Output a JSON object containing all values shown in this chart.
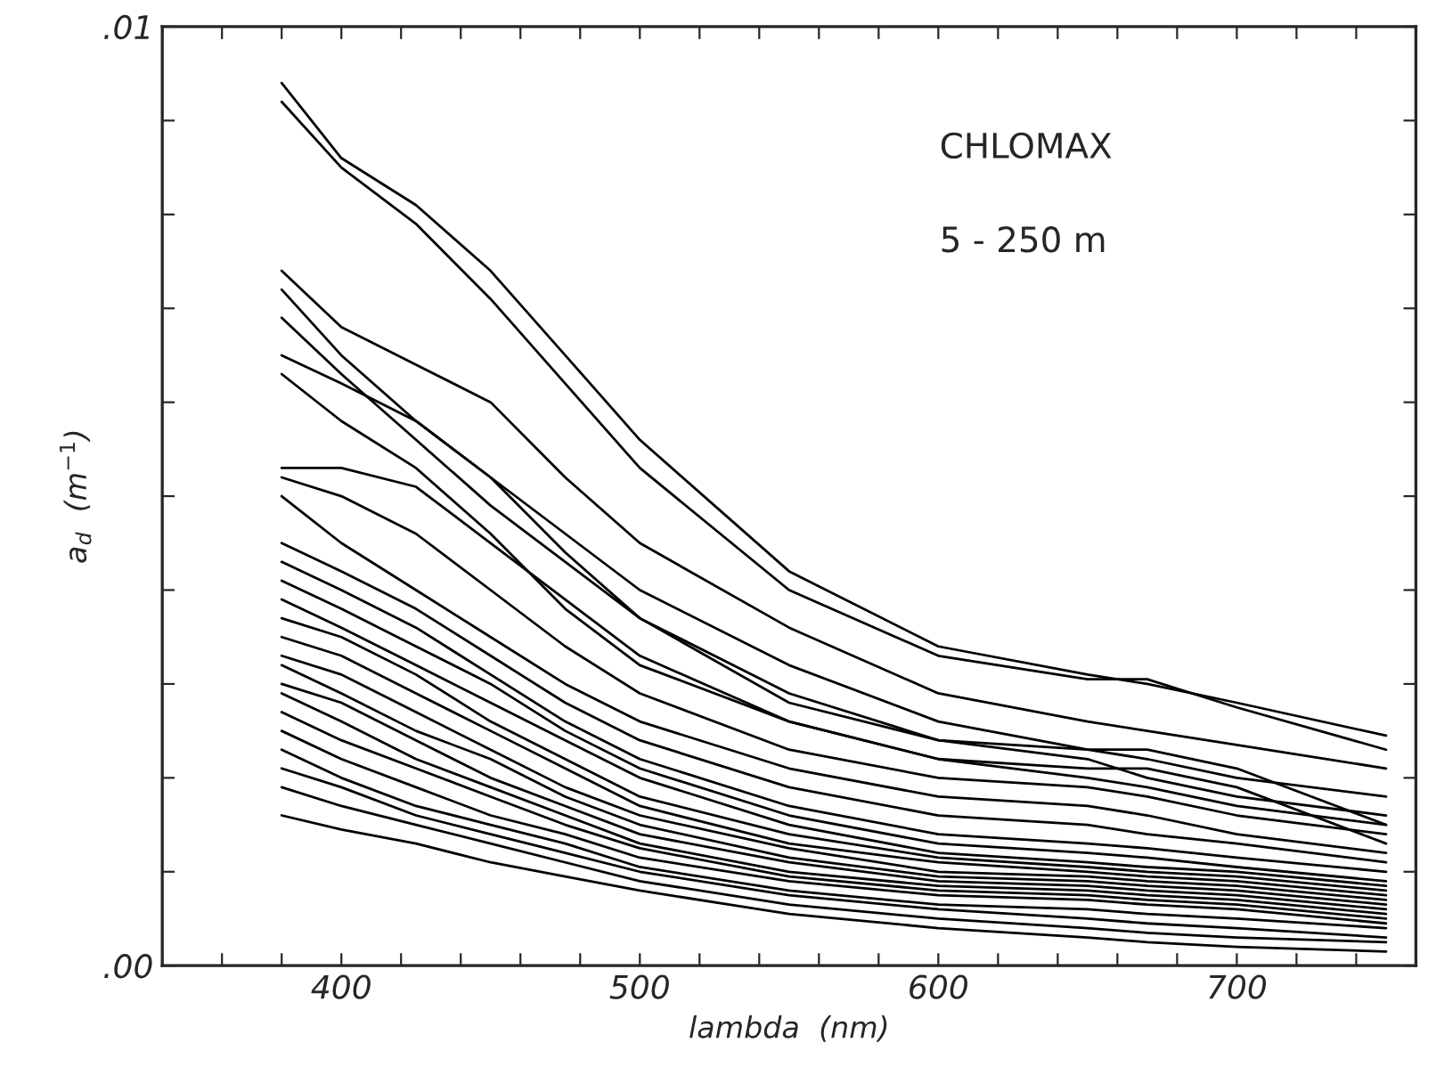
{
  "chart_data": {
    "type": "line",
    "xlabel": "lambda  (nm)",
    "ylabel": "a$_{d}$  (m$^{−1}$)",
    "annotations": [
      "CHLOMAX",
      "5 - 250 m"
    ],
    "x": [
      380,
      400,
      425,
      450,
      475,
      500,
      550,
      600,
      650,
      670,
      700,
      750
    ],
    "xlim": [
      340,
      760
    ],
    "xticks": [
      {
        "value": 340,
        "label": null
      },
      {
        "value": 360,
        "label": null
      },
      {
        "value": 380,
        "label": null
      },
      {
        "value": 400,
        "label": "400"
      },
      {
        "value": 420,
        "label": null
      },
      {
        "value": 440,
        "label": null
      },
      {
        "value": 460,
        "label": null
      },
      {
        "value": 480,
        "label": null
      },
      {
        "value": 500,
        "label": "500"
      },
      {
        "value": 520,
        "label": null
      },
      {
        "value": 540,
        "label": null
      },
      {
        "value": 560,
        "label": null
      },
      {
        "value": 580,
        "label": null
      },
      {
        "value": 600,
        "label": "600"
      },
      {
        "value": 620,
        "label": null
      },
      {
        "value": 640,
        "label": null
      },
      {
        "value": 660,
        "label": null
      },
      {
        "value": 680,
        "label": null
      },
      {
        "value": 700,
        "label": "700"
      },
      {
        "value": 720,
        "label": null
      },
      {
        "value": 740,
        "label": null
      },
      {
        "value": 760,
        "label": null
      }
    ],
    "ylim": [
      0,
      0.01
    ],
    "yticks": [
      {
        "value": 0,
        "label": ".00"
      },
      {
        "value": 0.001,
        "label": null
      },
      {
        "value": 0.002,
        "label": null
      },
      {
        "value": 0.003,
        "label": null
      },
      {
        "value": 0.004,
        "label": null
      },
      {
        "value": 0.005,
        "label": null
      },
      {
        "value": 0.006,
        "label": null
      },
      {
        "value": 0.007,
        "label": null
      },
      {
        "value": 0.008,
        "label": null
      },
      {
        "value": 0.009,
        "label": null
      },
      {
        "value": 0.01,
        "label": ".01"
      }
    ],
    "grid": false,
    "legend": false,
    "marker": "none",
    "line_style": "solid",
    "series": [
      {
        "color": "#000000",
        "values": [
          0.0094,
          0.0086,
          0.0081,
          0.0074,
          0.0065,
          0.0056,
          0.0042,
          0.0034,
          0.0031,
          0.003,
          0.0028,
          0.00245
        ]
      },
      {
        "color": "#000000",
        "values": [
          0.0092,
          0.0085,
          0.0079,
          0.0071,
          0.0062,
          0.0053,
          0.004,
          0.0033,
          0.00305,
          0.00305,
          0.00275,
          0.0023
        ]
      },
      {
        "color": "#000000",
        "values": [
          0.0074,
          0.0068,
          0.0064,
          0.006,
          0.0052,
          0.0045,
          0.0036,
          0.0029,
          0.0026,
          0.0025,
          0.00235,
          0.0021
        ]
      },
      {
        "color": "#000000",
        "values": [
          0.0072,
          0.0065,
          0.0058,
          0.0052,
          0.0046,
          0.004,
          0.0032,
          0.0026,
          0.0023,
          0.0022,
          0.002,
          0.0018
        ]
      },
      {
        "color": "#000000",
        "values": [
          0.0069,
          0.0063,
          0.0056,
          0.0049,
          0.0043,
          0.0037,
          0.0029,
          0.0024,
          0.0023,
          0.0023,
          0.0021,
          0.0015
        ]
      },
      {
        "color": "#000000",
        "values": [
          0.0065,
          0.0062,
          0.0058,
          0.0052,
          0.0044,
          0.0037,
          0.0028,
          0.0024,
          0.0022,
          0.002,
          0.0018,
          0.0016
        ]
      },
      {
        "color": "#000000",
        "values": [
          0.0063,
          0.0058,
          0.0053,
          0.0046,
          0.0038,
          0.0032,
          0.0026,
          0.0022,
          0.0021,
          0.0021,
          0.0019,
          0.0013
        ]
      },
      {
        "color": "#000000",
        "values": [
          0.0053,
          0.0053,
          0.0051,
          0.0045,
          0.0039,
          0.0033,
          0.0026,
          0.0022,
          0.002,
          0.0019,
          0.0017,
          0.0015
        ]
      },
      {
        "color": "#000000",
        "values": [
          0.0052,
          0.005,
          0.0046,
          0.004,
          0.0034,
          0.0029,
          0.0023,
          0.002,
          0.0019,
          0.0018,
          0.0016,
          0.0014
        ]
      },
      {
        "color": "#000000",
        "values": [
          0.005,
          0.0045,
          0.004,
          0.0035,
          0.003,
          0.0026,
          0.0021,
          0.0018,
          0.0017,
          0.0016,
          0.0014,
          0.0012
        ]
      },
      {
        "color": "#000000",
        "values": [
          0.0045,
          0.0042,
          0.0038,
          0.0033,
          0.0028,
          0.0024,
          0.0019,
          0.0016,
          0.0015,
          0.0014,
          0.0013,
          0.0011
        ]
      },
      {
        "color": "#000000",
        "values": [
          0.0043,
          0.004,
          0.0036,
          0.0031,
          0.0026,
          0.0022,
          0.0017,
          0.0014,
          0.0013,
          0.00125,
          0.00115,
          0.001
        ]
      },
      {
        "color": "#000000",
        "values": [
          0.0041,
          0.0038,
          0.0034,
          0.003,
          0.0025,
          0.0021,
          0.0016,
          0.0013,
          0.0012,
          0.00115,
          0.00105,
          0.0009
        ]
      },
      {
        "color": "#000000",
        "values": [
          0.0039,
          0.0036,
          0.0032,
          0.0028,
          0.0024,
          0.002,
          0.0015,
          0.0012,
          0.0011,
          0.00105,
          0.001,
          0.00085
        ]
      },
      {
        "color": "#000000",
        "values": [
          0.0037,
          0.0035,
          0.0031,
          0.0026,
          0.0022,
          0.0018,
          0.0014,
          0.00115,
          0.00105,
          0.001,
          0.00095,
          0.0008
        ]
      },
      {
        "color": "#000000",
        "values": [
          0.0035,
          0.0033,
          0.0029,
          0.0025,
          0.0021,
          0.0017,
          0.0013,
          0.0011,
          0.001,
          0.00095,
          0.0009,
          0.00075
        ]
      },
      {
        "color": "#000000",
        "values": [
          0.0033,
          0.0031,
          0.0027,
          0.0023,
          0.0019,
          0.0016,
          0.00125,
          0.001,
          0.00095,
          0.0009,
          0.00085,
          0.0007
        ]
      },
      {
        "color": "#000000",
        "values": [
          0.0032,
          0.0029,
          0.0025,
          0.0022,
          0.0018,
          0.0015,
          0.00115,
          0.00095,
          0.0009,
          0.00085,
          0.0008,
          0.00065
        ]
      },
      {
        "color": "#000000",
        "values": [
          0.003,
          0.0028,
          0.0024,
          0.002,
          0.0017,
          0.0014,
          0.0011,
          0.0009,
          0.00085,
          0.0008,
          0.00075,
          0.0006
        ]
      },
      {
        "color": "#000000",
        "values": [
          0.0029,
          0.0026,
          0.0022,
          0.0019,
          0.0016,
          0.0013,
          0.001,
          0.00085,
          0.0008,
          0.00075,
          0.0007,
          0.00055
        ]
      },
      {
        "color": "#000000",
        "values": [
          0.0027,
          0.0024,
          0.0021,
          0.0018,
          0.0015,
          0.00125,
          0.00095,
          0.0008,
          0.00075,
          0.0007,
          0.00065,
          0.0005
        ]
      },
      {
        "color": "#000000",
        "values": [
          0.0025,
          0.0022,
          0.0019,
          0.0016,
          0.0014,
          0.00115,
          0.0009,
          0.00075,
          0.0007,
          0.00065,
          0.0006,
          0.00045
        ]
      },
      {
        "color": "#000000",
        "values": [
          0.0023,
          0.002,
          0.0017,
          0.0015,
          0.0013,
          0.00105,
          0.0008,
          0.00065,
          0.0006,
          0.00055,
          0.0005,
          0.0004
        ]
      },
      {
        "color": "#000000",
        "values": [
          0.0021,
          0.0019,
          0.0016,
          0.0014,
          0.0012,
          0.001,
          0.00075,
          0.0006,
          0.0005,
          0.00045,
          0.0004,
          0.0003
        ]
      },
      {
        "color": "#000000",
        "values": [
          0.0019,
          0.0017,
          0.0015,
          0.0013,
          0.0011,
          0.0009,
          0.00065,
          0.0005,
          0.0004,
          0.00035,
          0.0003,
          0.00025
        ]
      },
      {
        "color": "#000000",
        "values": [
          0.0016,
          0.00145,
          0.0013,
          0.0011,
          0.00095,
          0.0008,
          0.00055,
          0.0004,
          0.0003,
          0.00025,
          0.0002,
          0.00015
        ]
      }
    ]
  }
}
